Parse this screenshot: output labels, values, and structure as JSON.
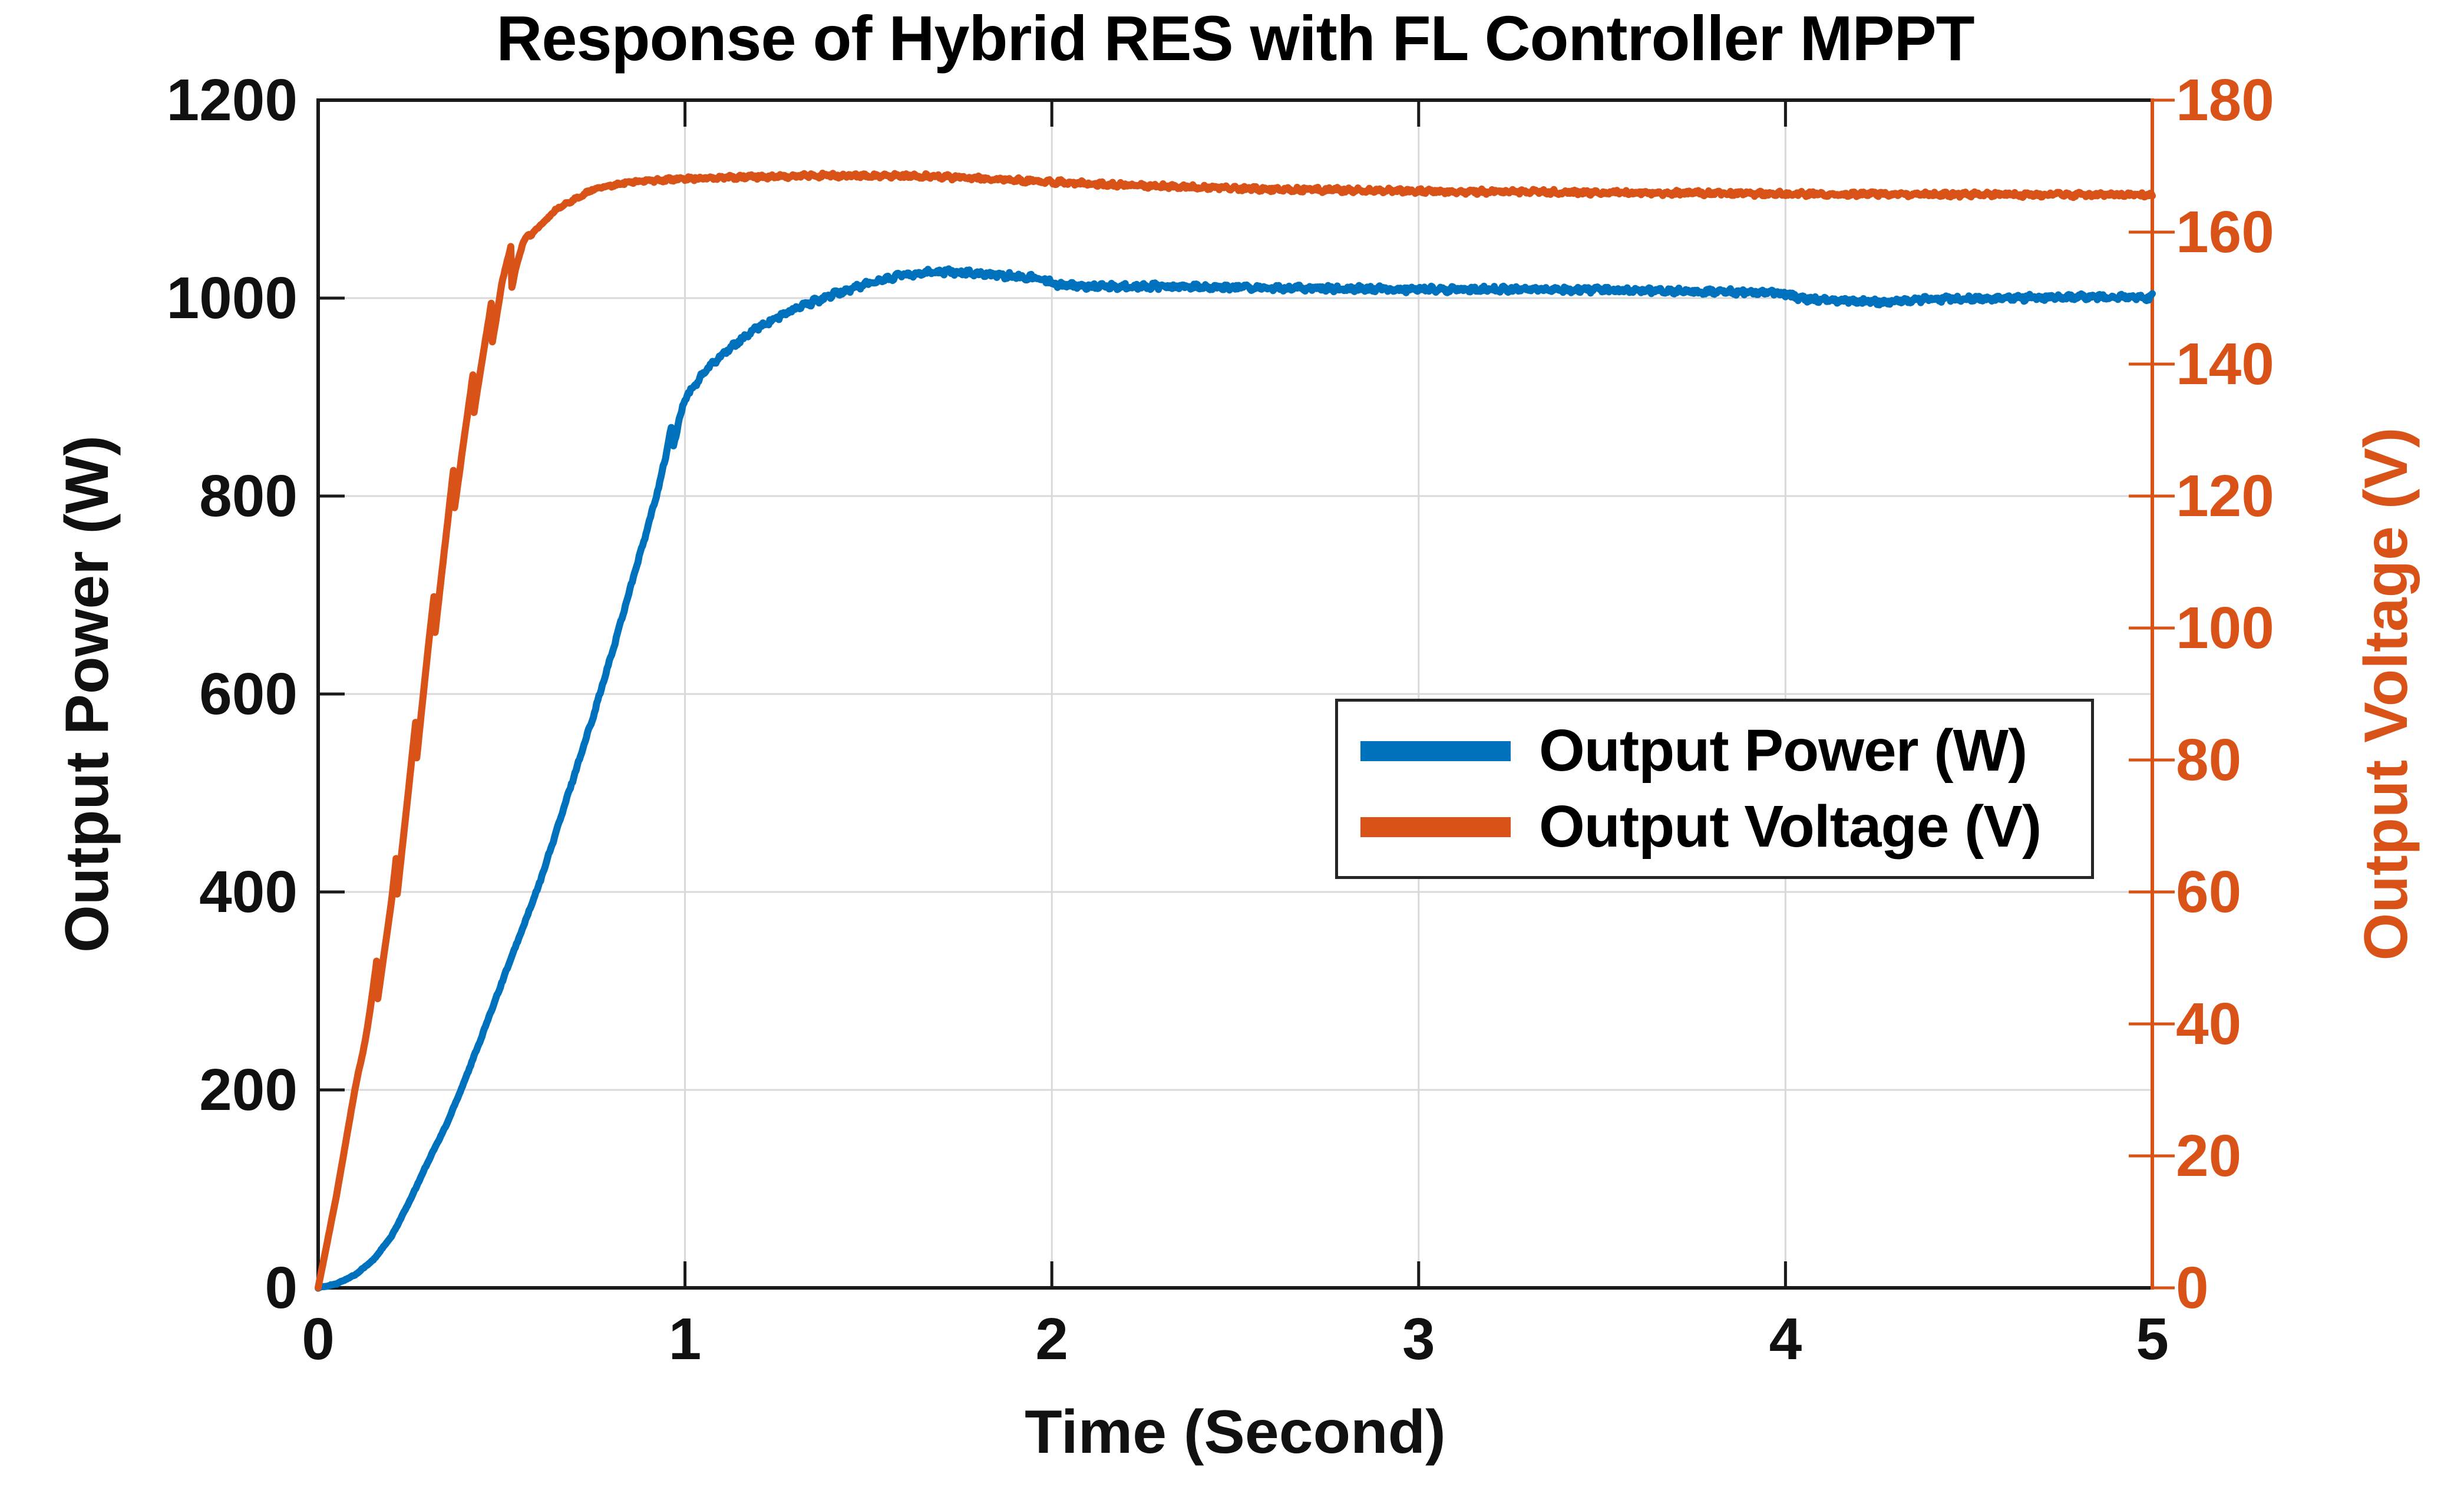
{
  "chart_data": {
    "type": "line",
    "title": "Response of Hybrid RES with FL Controller MPPT",
    "xlabel": "Time (Second)",
    "ylabel_left": "Output Power (W)",
    "ylabel_right": "Output Voltage (V)",
    "x_range": [
      0,
      5
    ],
    "x_ticks": [
      0,
      1,
      2,
      3,
      4,
      5
    ],
    "y_left_range": [
      0,
      1200
    ],
    "y_left_ticks": [
      0,
      200,
      400,
      600,
      800,
      1000,
      1200
    ],
    "y_right_range": [
      0,
      180
    ],
    "y_right_ticks": [
      0,
      20,
      40,
      60,
      80,
      100,
      120,
      140,
      160,
      180
    ],
    "grid": true,
    "legend": {
      "position": "middle-right"
    },
    "colors": {
      "power": "#0072BD",
      "voltage": "#D95319",
      "grid": "#D9D9D9",
      "axis": "#1A1A1A",
      "background": "#FFFFFF"
    },
    "series": [
      {
        "name": "Output Power (W)",
        "axis": "left",
        "color_key": "power",
        "noise": 2.4,
        "points": [
          [
            0,
            0
          ],
          [
            0.05,
            4
          ],
          [
            0.1,
            13
          ],
          [
            0.15,
            28
          ],
          [
            0.2,
            52
          ],
          [
            0.25,
            88
          ],
          [
            0.3,
            128
          ],
          [
            0.35,
            165
          ],
          [
            0.4,
            210
          ],
          [
            0.45,
            258
          ],
          [
            0.5,
            308
          ],
          [
            0.55,
            356
          ],
          [
            0.6,
            405
          ],
          [
            0.65,
            462
          ],
          [
            0.7,
            520
          ],
          [
            0.75,
            578
          ],
          [
            0.8,
            640
          ],
          [
            0.85,
            706
          ],
          [
            0.9,
            770
          ],
          [
            0.93,
            812
          ],
          [
            0.95,
            845
          ],
          [
            0.962,
            868
          ],
          [
            0.969,
            851
          ],
          [
            0.985,
            878
          ],
          [
            1.0,
            898
          ],
          [
            1.05,
            924
          ],
          [
            1.1,
            943
          ],
          [
            1.2,
            971
          ],
          [
            1.3,
            989
          ],
          [
            1.4,
            1003
          ],
          [
            1.5,
            1015
          ],
          [
            1.6,
            1024
          ],
          [
            1.7,
            1027
          ],
          [
            1.8,
            1025
          ],
          [
            1.9,
            1022
          ],
          [
            1.97,
            1020
          ],
          [
            2.02,
            1013
          ],
          [
            2.1,
            1012
          ],
          [
            2.3,
            1012
          ],
          [
            2.6,
            1010
          ],
          [
            3.0,
            1009
          ],
          [
            3.5,
            1008
          ],
          [
            3.9,
            1006
          ],
          [
            3.99,
            1005
          ],
          [
            4.04,
            1000
          ],
          [
            4.12,
            998
          ],
          [
            4.25,
            996
          ],
          [
            4.4,
            999
          ],
          [
            4.6,
            1000
          ],
          [
            4.8,
            1001
          ],
          [
            5.0,
            1001
          ]
        ]
      },
      {
        "name": "Output Voltage (V)",
        "axis": "right",
        "color_key": "voltage",
        "noise": 0.28,
        "staircase": {
          "t0": 0.11,
          "t1": 0.58,
          "period": 0.052,
          "amp": 7
        },
        "points": [
          [
            0,
            0
          ],
          [
            0.05,
            14
          ],
          [
            0.1,
            30
          ],
          [
            0.15,
            44
          ],
          [
            0.2,
            57
          ],
          [
            0.25,
            76
          ],
          [
            0.3,
            96
          ],
          [
            0.37,
            121
          ],
          [
            0.43,
            137
          ],
          [
            0.5,
            152
          ],
          [
            0.57,
            159
          ],
          [
            0.65,
            163.5
          ],
          [
            0.75,
            166.5
          ],
          [
            0.85,
            167.6
          ],
          [
            1.0,
            168.1
          ],
          [
            1.2,
            168.4
          ],
          [
            1.45,
            168.6
          ],
          [
            1.7,
            168.4
          ],
          [
            2.0,
            167.6
          ],
          [
            2.2,
            167.1
          ],
          [
            2.5,
            166.6
          ],
          [
            3.0,
            166.2
          ],
          [
            3.5,
            166.0
          ],
          [
            4.0,
            165.8
          ],
          [
            4.5,
            165.7
          ],
          [
            5.0,
            165.6
          ]
        ]
      }
    ]
  }
}
